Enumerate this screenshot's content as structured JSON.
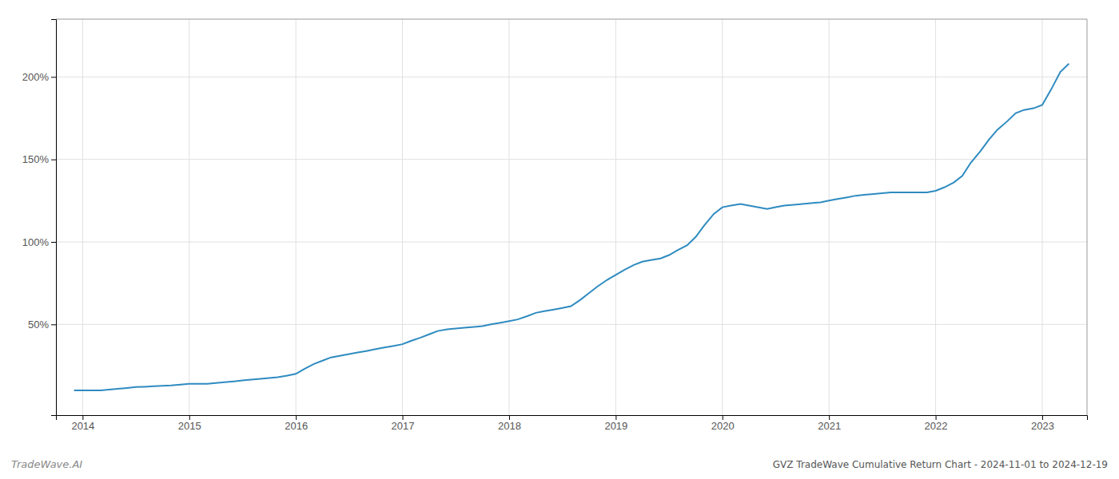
{
  "chart_data": {
    "type": "line",
    "title": "GVZ TradeWave Cumulative Return Chart - 2024-11-01 to 2024-12-19",
    "annotations": [
      "TradeWave.AI"
    ],
    "color": "#2e8bc0",
    "x": [
      2013.92,
      2014.0,
      2014.08,
      2014.17,
      2014.25,
      2014.33,
      2014.42,
      2014.5,
      2014.58,
      2014.67,
      2014.75,
      2014.83,
      2014.92,
      2015.0,
      2015.08,
      2015.17,
      2015.25,
      2015.33,
      2015.42,
      2015.5,
      2015.58,
      2015.67,
      2015.75,
      2015.83,
      2015.92,
      2016.0,
      2016.08,
      2016.17,
      2016.25,
      2016.33,
      2016.42,
      2016.5,
      2016.58,
      2016.67,
      2016.75,
      2016.83,
      2016.92,
      2017.0,
      2017.08,
      2017.17,
      2017.25,
      2017.33,
      2017.42,
      2017.5,
      2017.58,
      2017.67,
      2017.75,
      2017.83,
      2017.92,
      2018.0,
      2018.08,
      2018.17,
      2018.25,
      2018.33,
      2018.42,
      2018.5,
      2018.58,
      2018.67,
      2018.75,
      2018.83,
      2018.92,
      2019.0,
      2019.08,
      2019.17,
      2019.25,
      2019.33,
      2019.42,
      2019.5,
      2019.58,
      2019.67,
      2019.75,
      2019.83,
      2019.92,
      2020.0,
      2020.08,
      2020.17,
      2020.25,
      2020.33,
      2020.42,
      2020.5,
      2020.58,
      2020.67,
      2020.75,
      2020.83,
      2020.92,
      2021.0,
      2021.08,
      2021.17,
      2021.25,
      2021.33,
      2021.42,
      2021.5,
      2021.58,
      2021.67,
      2021.75,
      2021.83,
      2021.92,
      2022.0,
      2022.08,
      2022.17,
      2022.25,
      2022.33,
      2022.42,
      2022.5,
      2022.58,
      2022.67,
      2022.75,
      2022.83,
      2022.92,
      2023.0,
      2023.08,
      2023.17,
      2023.25
    ],
    "values": [
      10,
      10,
      10,
      10,
      10.5,
      11,
      11.5,
      12,
      12.2,
      12.5,
      12.8,
      13,
      13.5,
      14,
      14,
      14,
      14.5,
      15,
      15.5,
      16,
      16.5,
      17,
      17.5,
      18,
      19,
      20,
      23,
      26,
      28,
      30,
      31,
      32,
      33,
      34,
      35,
      36,
      37,
      38,
      40,
      42,
      44,
      46,
      47,
      47.5,
      48,
      48.5,
      49,
      50,
      51,
      52,
      53,
      55,
      57,
      58,
      59,
      60,
      61,
      65,
      69,
      73,
      77,
      80,
      83,
      86,
      88,
      89,
      90,
      92,
      95,
      98,
      103,
      110,
      117,
      121,
      122,
      123,
      122,
      121,
      120,
      121,
      122,
      122.5,
      123,
      123.5,
      124,
      125,
      126,
      127,
      128,
      128.5,
      129,
      129.5,
      130,
      130,
      130,
      130,
      130,
      131,
      133,
      136,
      140,
      148,
      155,
      162,
      168,
      173,
      178,
      180,
      181,
      183,
      192,
      203,
      208
    ],
    "xlim": [
      2013.75,
      2023.42
    ],
    "ylim": [
      -5,
      235
    ],
    "xticks": [
      2014,
      2015,
      2016,
      2017,
      2018,
      2019,
      2020,
      2021,
      2022,
      2023
    ],
    "yticks": [
      {
        "value": 50,
        "label": "50%"
      },
      {
        "value": 100,
        "label": "100%"
      },
      {
        "value": 150,
        "label": "150%"
      },
      {
        "value": 200,
        "label": "200%"
      }
    ],
    "grid": true
  }
}
